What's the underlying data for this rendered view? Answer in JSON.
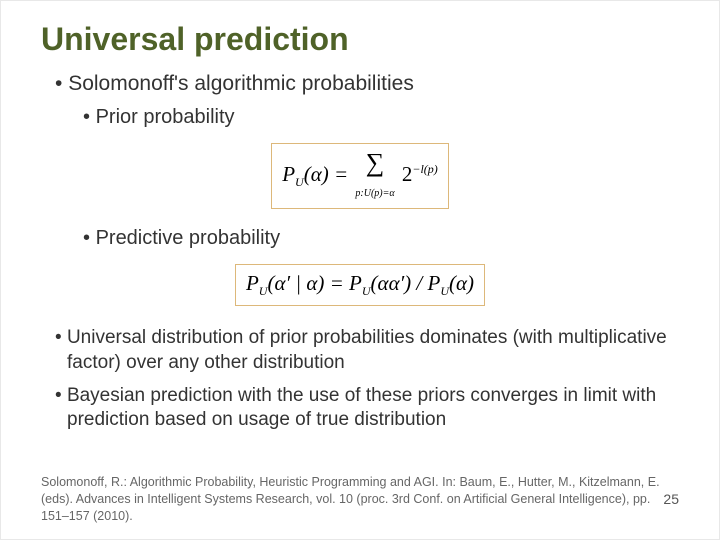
{
  "title": "Universal prediction",
  "bullet1": "Solomonoff's algorithmic probabilities",
  "bullet2": "Prior probability",
  "formula1": {
    "lhs": "P",
    "lhs_sub": "U",
    "arg": "(α) = ",
    "sum_sub": "p:U(p)=α",
    "rhs_base": "2",
    "rhs_exp": "−l(p)"
  },
  "bullet3": "Predictive probability",
  "formula2": {
    "text_lhs": "P",
    "sub1": "U",
    "mid1": "(α′ | α) = P",
    "sub2": "U",
    "mid2": "(αα′) / P",
    "sub3": "U",
    "end": "(α)"
  },
  "body1": "Universal distribution of prior probabilities dominates (with multiplicative factor) over any other distribution",
  "body2": "Bayesian prediction with the use of these priors converges in limit with prediction based on usage of true distribution",
  "footer": "Solomonoff, R.: Algorithmic Probability, Heuristic Programming and AGI. In: Baum, E., Hutter, M., Kitzelmann, E. (eds). Advances in Intelligent Systems Research, vol. 10 (proc. 3rd Conf. on Artificial General Intelligence), pp. 151–157 (2010).",
  "page": "25",
  "colors": {
    "title": "#4f6228",
    "text": "#333333",
    "border": "#ddb87a",
    "footer": "#666666"
  }
}
